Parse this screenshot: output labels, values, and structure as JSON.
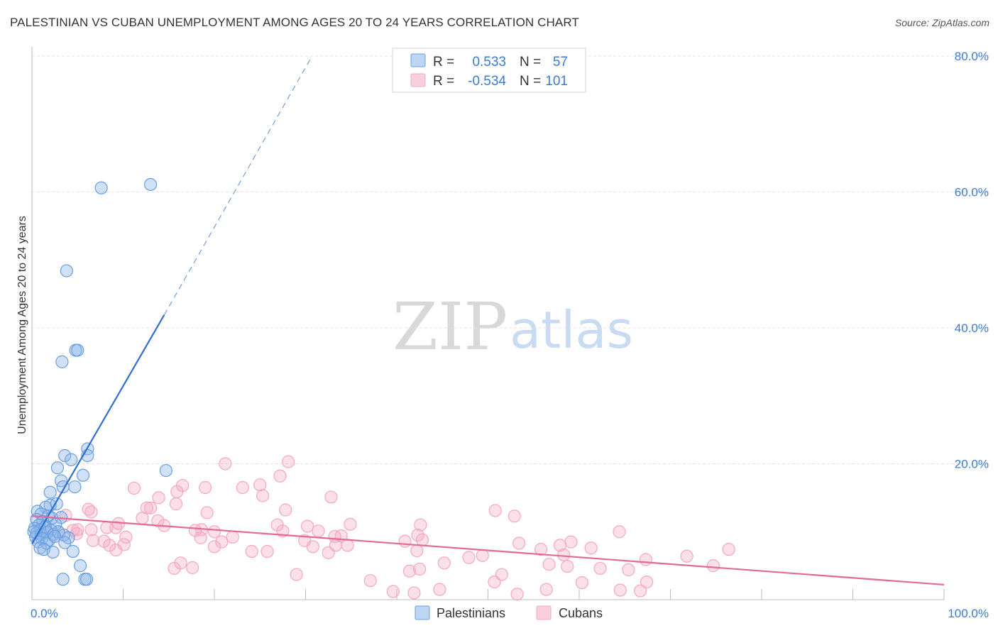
{
  "title": "PALESTINIAN VS CUBAN UNEMPLOYMENT AMONG AGES 20 TO 24 YEARS CORRELATION CHART",
  "source": "Source: ZipAtlas.com",
  "watermark": {
    "zip": "ZIP",
    "atlas": "atlas"
  },
  "colors": {
    "palestinians": "#8ab4e8",
    "palestinians_line": "#2f6fd0",
    "cubans": "#f4a7c0",
    "cubans_line": "#e46a96",
    "tick": "#3a7bd5"
  },
  "legend": {
    "rows": [
      {
        "r_label": "R =",
        "r_value": "0.533",
        "n_label": "N =",
        "n_value": "57"
      },
      {
        "r_label": "R =",
        "r_value": "-0.534",
        "n_label": "N =",
        "n_value": "101"
      }
    ]
  },
  "bottom_legend": {
    "palestinians": "Palestinians",
    "cubans": "Cubans"
  },
  "chart_data": {
    "type": "scatter",
    "title": "PALESTINIAN VS CUBAN UNEMPLOYMENT AMONG AGES 20 TO 24 YEARS CORRELATION CHART",
    "xlabel": "",
    "ylabel": "Unemployment Among Ages 20 to 24 years",
    "xlim": [
      0,
      100
    ],
    "ylim": [
      0,
      80
    ],
    "x_tick_labels": [
      "0.0%",
      "100.0%"
    ],
    "y_tick_labels": [
      "20.0%",
      "40.0%",
      "60.0%",
      "80.0%"
    ],
    "y_ticks": [
      20,
      40,
      60,
      80
    ],
    "series": [
      {
        "name": "Palestinians",
        "r": 0.533,
        "n": 57,
        "trend": {
          "x0": 0,
          "y0": 8.2,
          "x1": 14.5,
          "y1": 41.9,
          "dash_x1": 30.5,
          "dash_y1": 79.5
        },
        "points": [
          [
            7.6,
            60.6
          ],
          [
            13.0,
            61.1
          ],
          [
            3.8,
            48.4
          ],
          [
            4.8,
            36.7
          ],
          [
            5.0,
            36.7
          ],
          [
            3.3,
            35.0
          ],
          [
            6.1,
            22.2
          ],
          [
            6.1,
            21.2
          ],
          [
            3.6,
            21.2
          ],
          [
            4.3,
            20.6
          ],
          [
            14.7,
            19.0
          ],
          [
            2.8,
            19.4
          ],
          [
            5.6,
            18.3
          ],
          [
            3.2,
            17.5
          ],
          [
            3.4,
            16.6
          ],
          [
            4.7,
            16.6
          ],
          [
            2.0,
            15.8
          ],
          [
            2.0,
            13.9
          ],
          [
            1.5,
            13.6
          ],
          [
            2.7,
            14.1
          ],
          [
            0.6,
            13.0
          ],
          [
            1.0,
            12.6
          ],
          [
            1.8,
            12.3
          ],
          [
            2.2,
            12.0
          ],
          [
            3.2,
            12.1
          ],
          [
            0.5,
            11.8
          ],
          [
            1.2,
            11.5
          ],
          [
            0.8,
            11.0
          ],
          [
            2.6,
            11.1
          ],
          [
            1.5,
            10.8
          ],
          [
            0.3,
            10.5
          ],
          [
            0.9,
            10.3
          ],
          [
            1.4,
            10.6
          ],
          [
            2.1,
            10.2
          ],
          [
            0.5,
            9.8
          ],
          [
            1.0,
            9.6
          ],
          [
            1.7,
            9.9
          ],
          [
            2.4,
            9.6
          ],
          [
            2.9,
            10.0
          ],
          [
            3.5,
            9.5
          ],
          [
            0.4,
            9.2
          ],
          [
            1.1,
            9.0
          ],
          [
            1.9,
            8.8
          ],
          [
            4.0,
            9.1
          ],
          [
            0.7,
            8.5
          ],
          [
            1.6,
            8.3
          ],
          [
            3.6,
            8.4
          ],
          [
            0.9,
            7.6
          ],
          [
            1.3,
            7.4
          ],
          [
            2.3,
            7.0
          ],
          [
            4.5,
            7.1
          ],
          [
            5.3,
            5.0
          ],
          [
            3.4,
            3.0
          ],
          [
            5.8,
            3.0
          ],
          [
            6.0,
            3.0
          ],
          [
            2.5,
            9.3
          ],
          [
            0.2,
            10.0
          ]
        ]
      },
      {
        "name": "Cubans",
        "r": -0.534,
        "n": 101,
        "trend": {
          "x0": 0,
          "y0": 12.3,
          "x1": 100,
          "y1": 2.2
        },
        "points": [
          [
            21.2,
            20.0
          ],
          [
            28.1,
            20.3
          ],
          [
            27.2,
            18.2
          ],
          [
            11.2,
            16.4
          ],
          [
            15.9,
            15.9
          ],
          [
            16.5,
            16.8
          ],
          [
            19.0,
            16.5
          ],
          [
            23.1,
            16.5
          ],
          [
            25.0,
            16.9
          ],
          [
            25.3,
            15.3
          ],
          [
            32.8,
            15.1
          ],
          [
            13.9,
            15.0
          ],
          [
            12.6,
            13.5
          ],
          [
            13.0,
            13.5
          ],
          [
            15.8,
            14.1
          ],
          [
            6.2,
            13.3
          ],
          [
            6.5,
            12.9
          ],
          [
            3.7,
            12.4
          ],
          [
            19.2,
            12.8
          ],
          [
            12.1,
            12.0
          ],
          [
            50.8,
            13.1
          ],
          [
            52.9,
            12.3
          ],
          [
            13.8,
            11.6
          ],
          [
            9.5,
            11.2
          ],
          [
            26.9,
            11.0
          ],
          [
            34.9,
            11.1
          ],
          [
            30.2,
            10.8
          ],
          [
            14.5,
            10.9
          ],
          [
            8.2,
            10.6
          ],
          [
            9.2,
            10.6
          ],
          [
            4.5,
            10.2
          ],
          [
            5.0,
            10.3
          ],
          [
            6.5,
            10.3
          ],
          [
            17.9,
            10.2
          ],
          [
            18.6,
            10.3
          ],
          [
            20.0,
            10.0
          ],
          [
            27.5,
            10.1
          ],
          [
            31.4,
            10.1
          ],
          [
            42.6,
            11.0
          ],
          [
            64.4,
            10.0
          ],
          [
            3.0,
            9.8
          ],
          [
            4.9,
            9.7
          ],
          [
            42.3,
            9.5
          ],
          [
            33.2,
            9.3
          ],
          [
            10.3,
            9.2
          ],
          [
            18.5,
            9.1
          ],
          [
            22.0,
            9.2
          ],
          [
            33.9,
            9.4
          ],
          [
            42.8,
            8.8
          ],
          [
            6.7,
            8.7
          ],
          [
            7.9,
            8.6
          ],
          [
            20.8,
            8.5
          ],
          [
            29.9,
            8.7
          ],
          [
            40.9,
            8.6
          ],
          [
            53.4,
            8.3
          ],
          [
            59.1,
            8.5
          ],
          [
            8.5,
            8.0
          ],
          [
            10.1,
            8.1
          ],
          [
            20.0,
            7.8
          ],
          [
            30.8,
            7.8
          ],
          [
            33.3,
            8.0
          ],
          [
            34.6,
            8.0
          ],
          [
            55.8,
            7.4
          ],
          [
            61.3,
            7.6
          ],
          [
            76.4,
            7.4
          ],
          [
            9.2,
            7.3
          ],
          [
            24.1,
            7.1
          ],
          [
            25.8,
            7.1
          ],
          [
            42.2,
            7.2
          ],
          [
            32.5,
            6.9
          ],
          [
            49.4,
            6.5
          ],
          [
            58.3,
            6.6
          ],
          [
            47.9,
            6.2
          ],
          [
            67.3,
            5.9
          ],
          [
            71.8,
            6.4
          ],
          [
            16.3,
            5.4
          ],
          [
            45.2,
            5.4
          ],
          [
            56.7,
            5.2
          ],
          [
            58.7,
            4.9
          ],
          [
            62.3,
            4.6
          ],
          [
            65.4,
            4.4
          ],
          [
            17.6,
            4.7
          ],
          [
            42.5,
            4.5
          ],
          [
            41.4,
            4.2
          ],
          [
            29.0,
            3.7
          ],
          [
            51.5,
            3.7
          ],
          [
            74.7,
            5.0
          ],
          [
            37.1,
            2.8
          ],
          [
            50.7,
            2.6
          ],
          [
            60.3,
            2.5
          ],
          [
            67.4,
            2.6
          ],
          [
            44.7,
            1.5
          ],
          [
            56.4,
            1.5
          ],
          [
            64.5,
            1.4
          ],
          [
            39.6,
            1.2
          ],
          [
            41.9,
            1.0
          ],
          [
            53.2,
            0.8
          ],
          [
            15.6,
            4.6
          ],
          [
            66.7,
            1.3
          ],
          [
            57.9,
            8.0
          ],
          [
            27.8,
            13.2
          ]
        ]
      }
    ]
  }
}
